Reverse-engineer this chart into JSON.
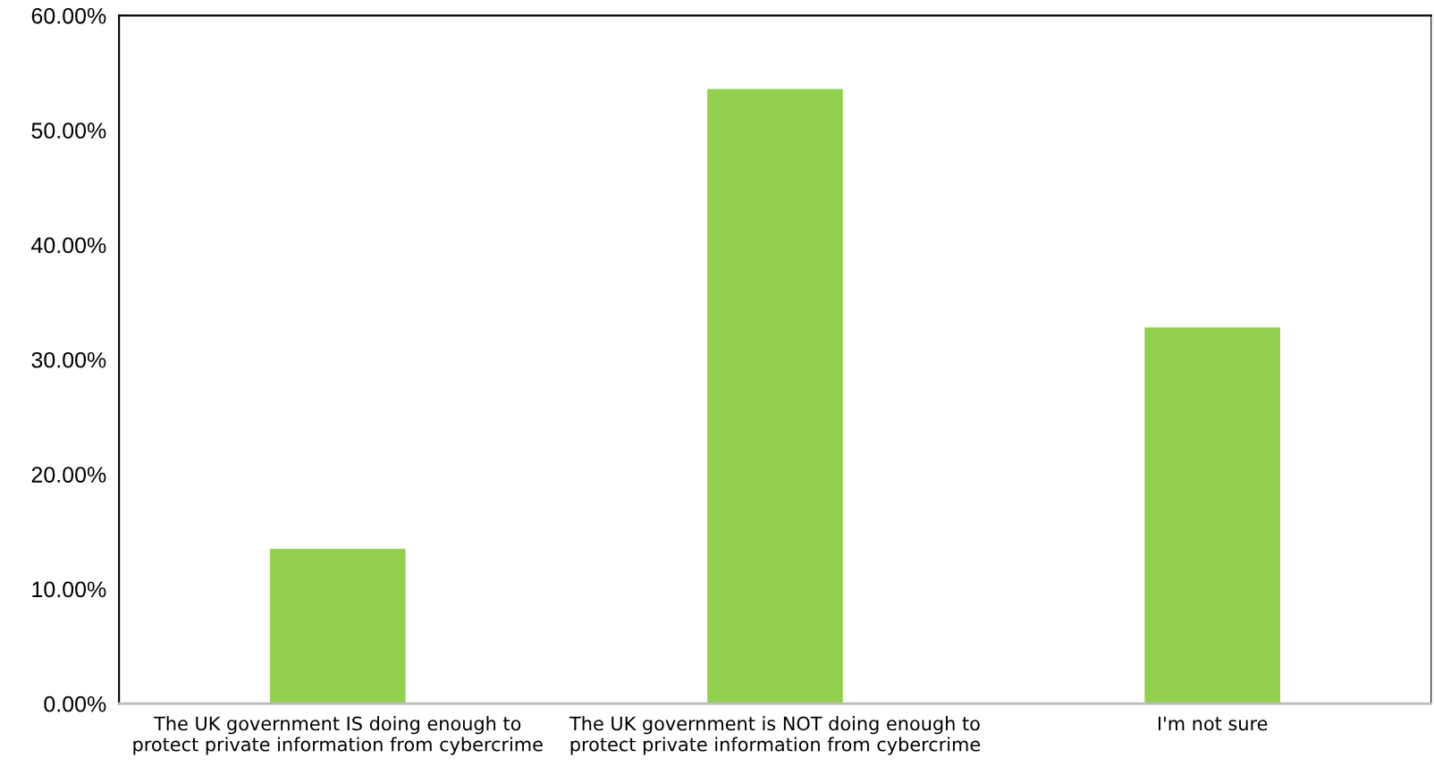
{
  "chart_data": {
    "type": "bar",
    "categories": [
      "The UK government IS doing enough to\nprotect private information from cybercrime",
      "The UK government is NOT doing enough to\nprotect private information from cybercrime",
      "I'm not sure"
    ],
    "values": [
      13.5,
      53.6,
      32.8
    ],
    "color": "#92d050",
    "ylim": [
      0,
      60
    ],
    "yticks": [
      {
        "value": 0,
        "label": "0.00%"
      },
      {
        "value": 10,
        "label": "10.00%"
      },
      {
        "value": 20,
        "label": "20.00%"
      },
      {
        "value": 30,
        "label": "30.00%"
      },
      {
        "value": 40,
        "label": "40.00%"
      },
      {
        "value": 50,
        "label": "50.00%"
      },
      {
        "value": 60,
        "label": "60.00%"
      }
    ],
    "grid": false
  }
}
